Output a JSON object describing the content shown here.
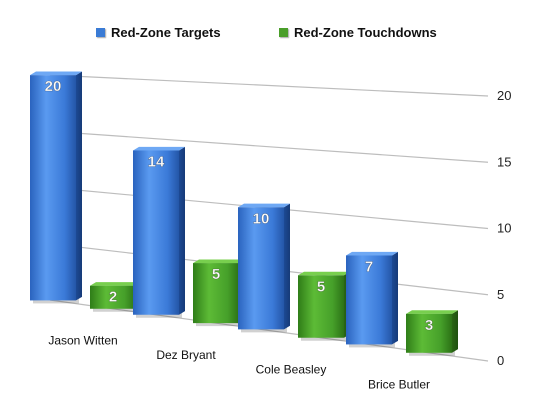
{
  "chart_data": {
    "type": "bar",
    "categories": [
      "Jason Witten",
      "Dez Bryant",
      "Cole Beasley",
      "Brice Butler"
    ],
    "series": [
      {
        "name": "Red-Zone Targets",
        "values": [
          20,
          14,
          10,
          7
        ],
        "color": "#3a7bd5"
      },
      {
        "name": "Red-Zone Touchdowns",
        "values": [
          2,
          5,
          5,
          3
        ],
        "color": "#4a9e2a"
      }
    ],
    "ylim": [
      0,
      20
    ],
    "yticks": [
      0,
      5,
      10,
      15,
      20
    ],
    "legend_position": "top",
    "grid": true,
    "style": "3d-perspective"
  }
}
